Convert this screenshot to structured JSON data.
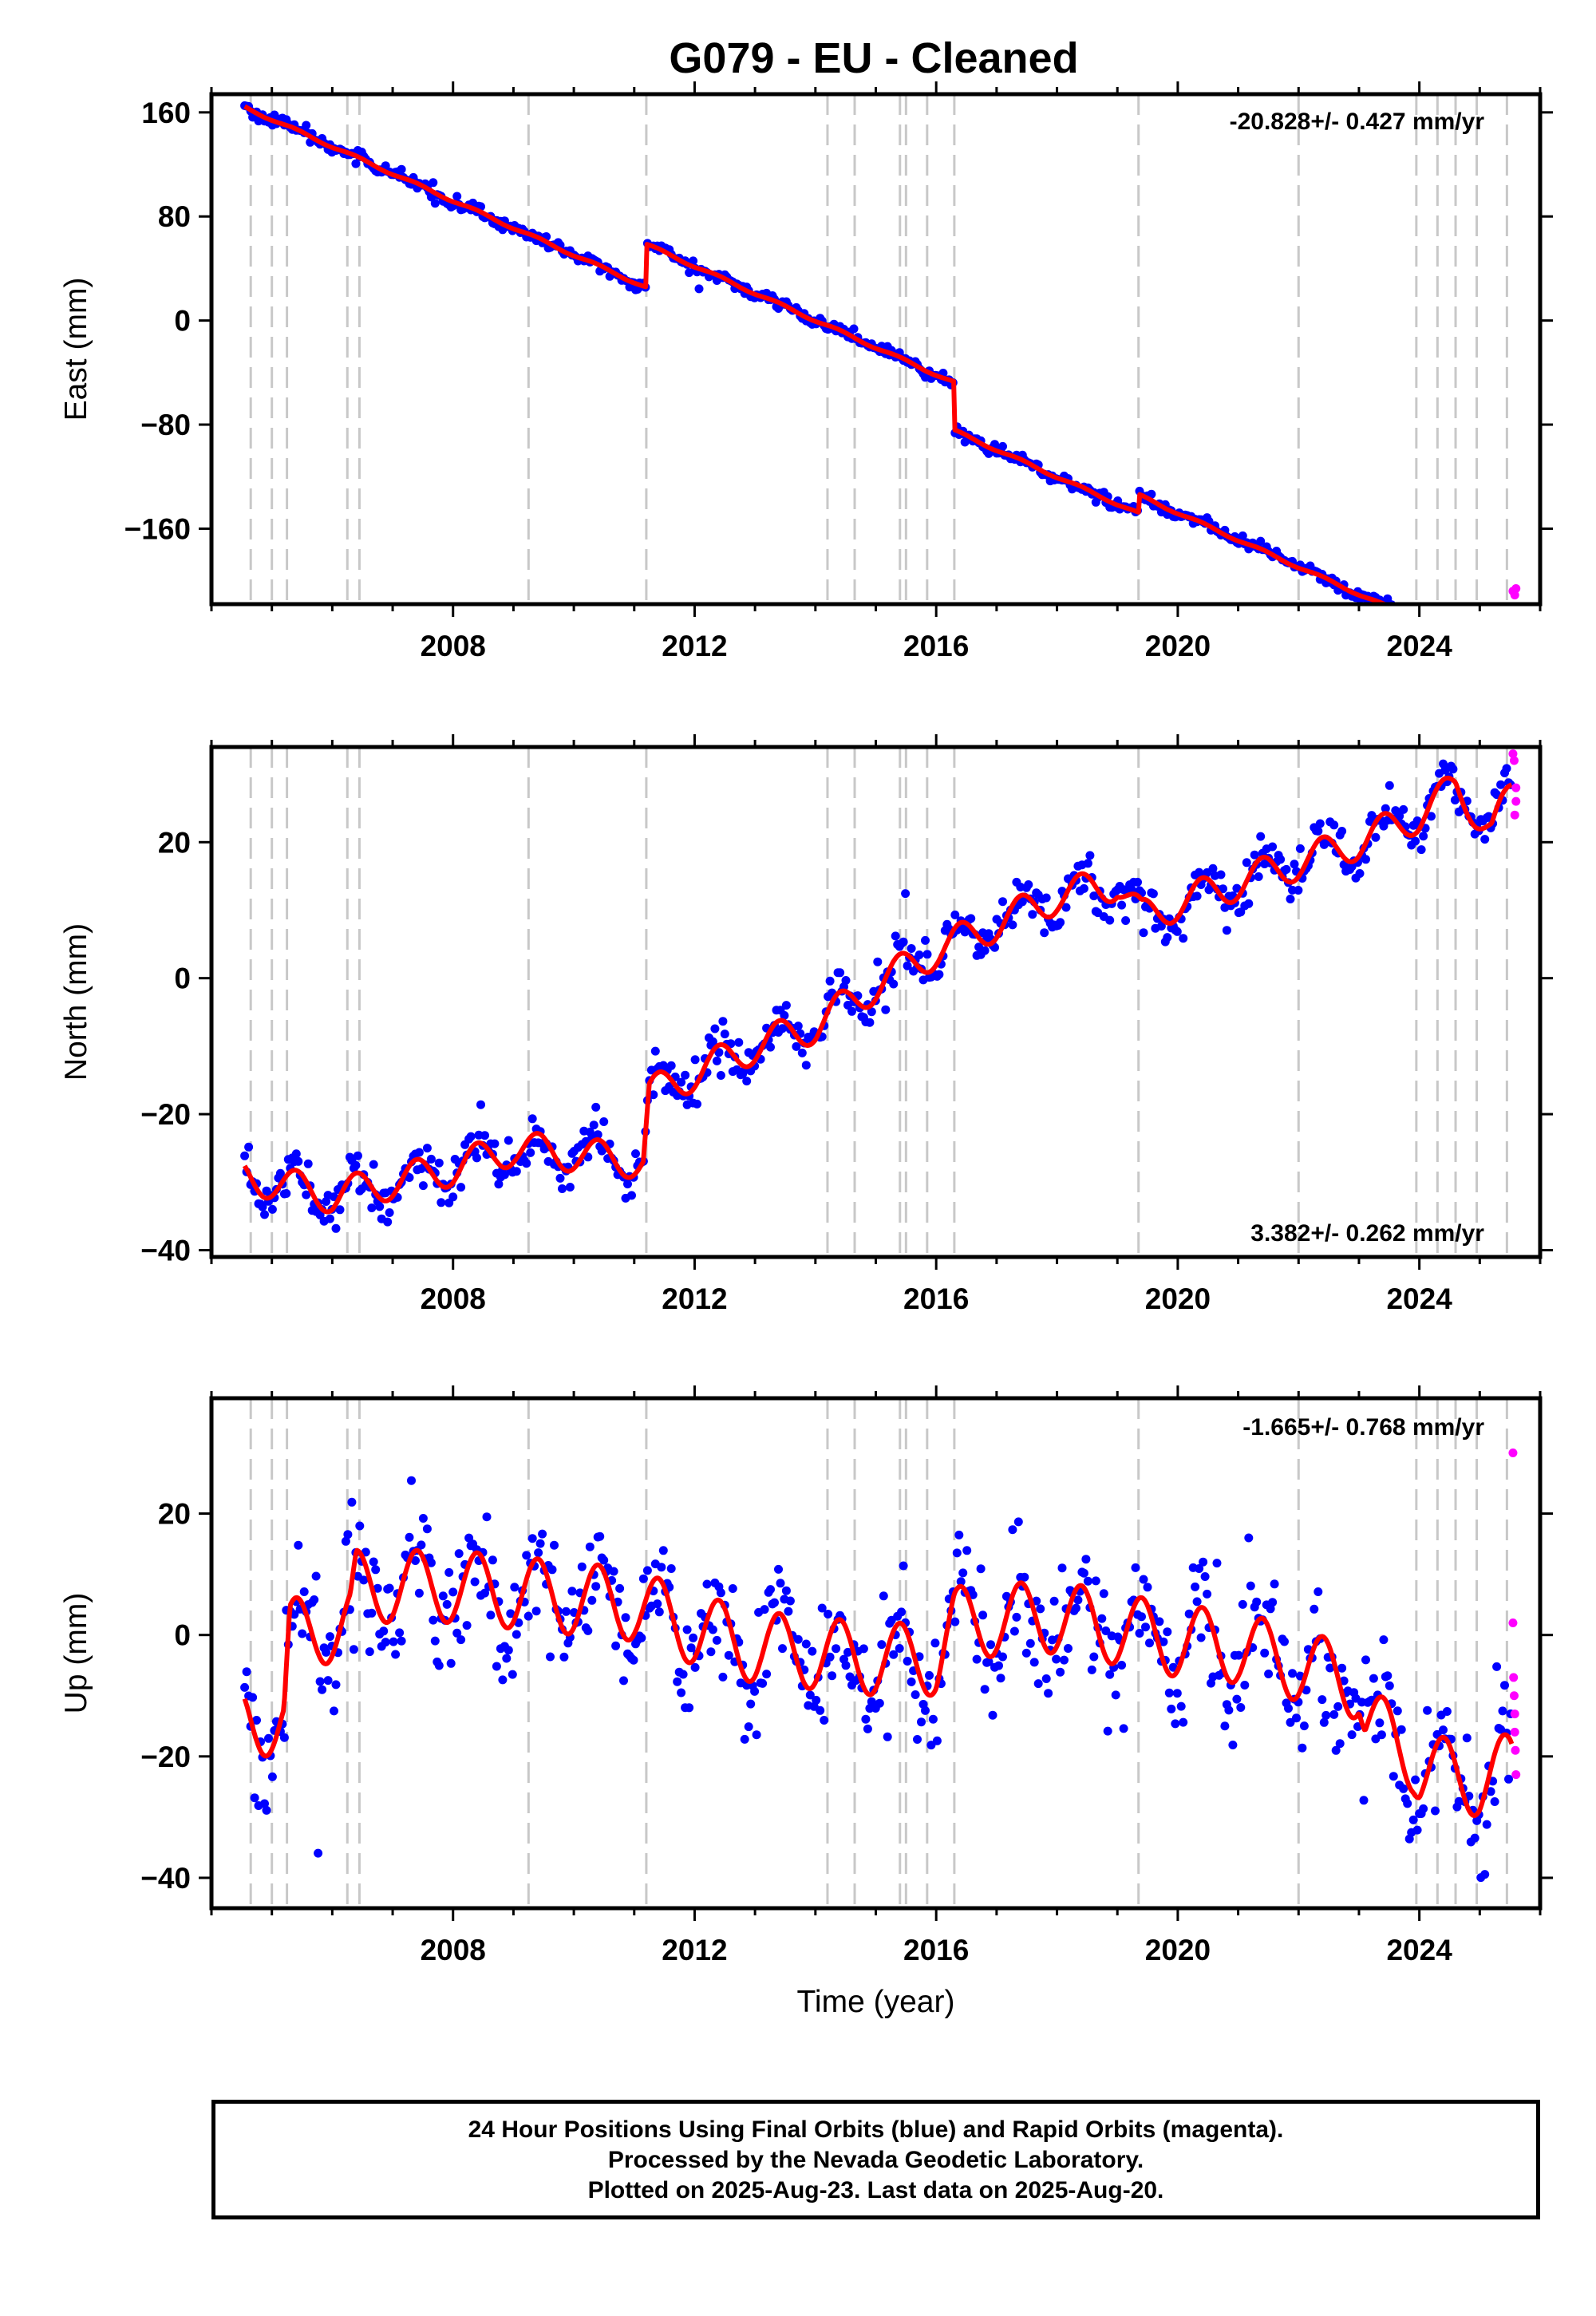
{
  "title": "G079  - EU - Cleaned",
  "footer": {
    "line1": "24 Hour Positions Using Final Orbits (blue) and Rapid Orbits (magenta).",
    "line2": "Processed by the Nevada Geodetic Laboratory.",
    "line3": "Plotted on 2025-Aug-23. Last data on 2025-Aug-20."
  },
  "colors": {
    "final_orbits": "#0000ff",
    "rapid_orbits": "#ff00ff",
    "model": "#ff0000",
    "event_lines": "#c8c8c8"
  },
  "chart_data": [
    {
      "type": "scatter",
      "name": "east",
      "ylabel": "East (mm)",
      "xlabel": "",
      "rate_text": "-20.828+/- 0.427 mm/yr",
      "rate_position": "top-right",
      "xlim": [
        2004.0,
        2026.0
      ],
      "ylim": [
        -218,
        174
      ],
      "xticks": [
        2008,
        2012,
        2016,
        2020,
        2024
      ],
      "yticks": [
        160,
        80,
        0,
        -80,
        -160
      ],
      "ytick_labels": [
        "160",
        "80",
        "0",
        "−80",
        "−160"
      ],
      "grid": false,
      "event_lines": [
        2004.65,
        2005.0,
        2005.25,
        2006.25,
        2006.45,
        2009.25,
        2011.2,
        2014.2,
        2014.65,
        2015.4,
        2015.5,
        2015.85,
        2016.3,
        2019.35,
        2022.0,
        2023.95,
        2024.3,
        2024.6,
        2024.95,
        2025.45
      ],
      "trend": {
        "t0": 2004.5,
        "y0": 165.0,
        "rate": -20.828
      },
      "offsets": [
        {
          "t": 2011.2,
          "dy": 33.0
        },
        {
          "t": 2016.3,
          "dy": -37.0
        },
        {
          "t": 2019.35,
          "dy": 14.0
        }
      ],
      "seasonal_amp": 1.2,
      "noise": 2.2,
      "rapid_points": [
        {
          "t": 2025.55,
          "y": -208
        },
        {
          "t": 2025.58,
          "y": -211
        },
        {
          "t": 2025.6,
          "y": -206
        }
      ],
      "model_kinks": [
        {
          "t1": 2004.55,
          "t2": 2005.15
        },
        {
          "t1": 2009.25,
          "t2": 2011.2
        },
        {
          "t1": 2017.0,
          "t2": 2019.35
        }
      ]
    },
    {
      "type": "scatter",
      "name": "north",
      "ylabel": "North (mm)",
      "xlabel": "",
      "rate_text": "3.382+/- 0.262 mm/yr",
      "rate_position": "bottom-right",
      "xlim": [
        2004.0,
        2026.0
      ],
      "ylim": [
        -41,
        34
      ],
      "xticks": [
        2008,
        2012,
        2016,
        2020,
        2024
      ],
      "yticks": [
        20,
        0,
        -20,
        -40
      ],
      "ytick_labels": [
        "20",
        "0",
        "−20",
        "−40"
      ],
      "grid": false,
      "event_lines": [
        2004.65,
        2005.0,
        2005.25,
        2006.25,
        2006.45,
        2009.25,
        2011.2,
        2014.2,
        2014.65,
        2015.4,
        2015.5,
        2015.85,
        2016.3,
        2019.35,
        2022.0,
        2023.95,
        2024.3,
        2024.6,
        2024.95,
        2025.45
      ],
      "anchors": [
        [
          2004.5,
          -29
        ],
        [
          2006.0,
          -32
        ],
        [
          2008.0,
          -28
        ],
        [
          2009.0,
          -25
        ],
        [
          2011.15,
          -27
        ],
        [
          2011.25,
          -17
        ],
        [
          2012.0,
          -14
        ],
        [
          2013.0,
          -10
        ],
        [
          2014.0,
          -7
        ],
        [
          2015.0,
          -1
        ],
        [
          2016.0,
          4
        ],
        [
          2017.0,
          8
        ],
        [
          2018.0,
          12
        ],
        [
          2019.0,
          14
        ],
        [
          2019.4,
          9
        ],
        [
          2020.0,
          11
        ],
        [
          2021.0,
          14
        ],
        [
          2022.0,
          17
        ],
        [
          2023.0,
          20
        ],
        [
          2024.0,
          24
        ],
        [
          2024.6,
          28
        ],
        [
          2025.2,
          22
        ],
        [
          2025.55,
          27
        ]
      ],
      "seasonal_amp": 3.0,
      "noise": 1.6,
      "rapid_points": [
        {
          "t": 2025.55,
          "y": 33
        },
        {
          "t": 2025.57,
          "y": 32
        },
        {
          "t": 2025.58,
          "y": 24
        },
        {
          "t": 2025.6,
          "y": 28
        },
        {
          "t": 2025.6,
          "y": 26
        }
      ]
    },
    {
      "type": "scatter",
      "name": "up",
      "ylabel": "Up (mm)",
      "xlabel": "Time (year)",
      "rate_text": "-1.665+/- 0.768 mm/yr",
      "rate_position": "top-right",
      "xlim": [
        2004.0,
        2026.0
      ],
      "ylim": [
        -45,
        39
      ],
      "xticks": [
        2008,
        2012,
        2016,
        2020,
        2024
      ],
      "yticks": [
        20,
        0,
        -20,
        -40
      ],
      "ytick_labels": [
        "20",
        "0",
        "−20",
        "−40"
      ],
      "grid": false,
      "event_lines": [
        2004.65,
        2005.0,
        2005.25,
        2006.25,
        2006.45,
        2009.25,
        2011.2,
        2014.2,
        2014.65,
        2015.4,
        2015.5,
        2015.85,
        2016.3,
        2019.35,
        2022.0,
        2023.95,
        2024.3,
        2024.6,
        2024.95,
        2025.45
      ],
      "anchors": [
        [
          2004.5,
          -14
        ],
        [
          2005.2,
          -14
        ],
        [
          2005.3,
          0
        ],
        [
          2006.3,
          2
        ],
        [
          2006.4,
          8
        ],
        [
          2008.0,
          8
        ],
        [
          2009.0,
          7
        ],
        [
          2011.0,
          5
        ],
        [
          2012.0,
          1
        ],
        [
          2013.0,
          -2
        ],
        [
          2014.0,
          -3
        ],
        [
          2015.0,
          -4
        ],
        [
          2016.0,
          -4
        ],
        [
          2016.3,
          2
        ],
        [
          2018.0,
          3
        ],
        [
          2019.0,
          1
        ],
        [
          2020.0,
          -1
        ],
        [
          2021.0,
          -2
        ],
        [
          2022.0,
          -5
        ],
        [
          2023.0,
          -8
        ],
        [
          2023.1,
          -14
        ],
        [
          2023.9,
          -20
        ],
        [
          2024.0,
          -22
        ],
        [
          2025.0,
          -24
        ],
        [
          2025.5,
          -22
        ]
      ],
      "seasonal_amp": 7.0,
      "noise": 5.5,
      "rapid_points": [
        {
          "t": 2025.55,
          "y": 30
        },
        {
          "t": 2025.55,
          "y": 2
        },
        {
          "t": 2025.56,
          "y": -7
        },
        {
          "t": 2025.57,
          "y": -10
        },
        {
          "t": 2025.58,
          "y": -13
        },
        {
          "t": 2025.58,
          "y": -16
        },
        {
          "t": 2025.59,
          "y": -19
        },
        {
          "t": 2025.6,
          "y": -23
        }
      ]
    }
  ]
}
